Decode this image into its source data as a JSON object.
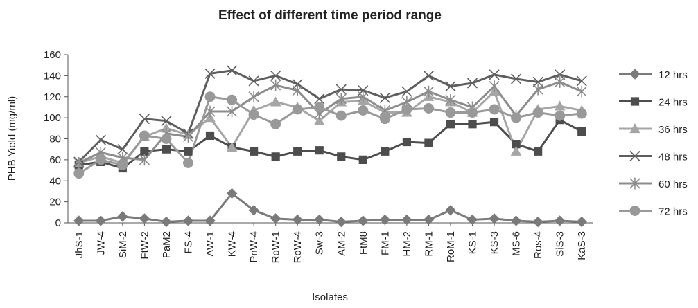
{
  "chart_data": {
    "type": "line",
    "title": "Effect of different time period range",
    "x_label": "Isolates",
    "y_label": "PHB Yield (mg/ml)",
    "categories": [
      "JhS-1",
      "JW-4",
      "SiM-2",
      "FtW-2",
      "PaM2",
      "FS-4",
      "AW-1",
      "KW-4",
      "PnW-4",
      "RoW-1",
      "RoW-4",
      "Sw-3",
      "AM-2",
      "FtM8",
      "FM-1",
      "HM-2",
      "RM-1",
      "RoM-1",
      "KS-1",
      "KS-3",
      "MS-6",
      "Ros-4",
      "SiS-3",
      "KaS-3"
    ],
    "ylim": [
      0,
      160
    ],
    "yticks": [
      0,
      20,
      40,
      60,
      80,
      100,
      120,
      140,
      160
    ],
    "grid": false,
    "legend": "right",
    "series": [
      {
        "name": "12 hrs",
        "color": "#7a7a7a",
        "marker": "diamond",
        "values": [
          2,
          2,
          6,
          4,
          1,
          2,
          2,
          28,
          12,
          4,
          3,
          3,
          1,
          2,
          3,
          3,
          3,
          12,
          3,
          4,
          2,
          1,
          2,
          1
        ]
      },
      {
        "name": "24 hrs",
        "color": "#4d4d4d",
        "marker": "square",
        "values": [
          55,
          58,
          52,
          68,
          70,
          68,
          83,
          72,
          68,
          63,
          68,
          69,
          63,
          60,
          68,
          77,
          76,
          94,
          94,
          96,
          75,
          68,
          98,
          87
        ]
      },
      {
        "name": "36 hrs",
        "color": "#a6a6a6",
        "marker": "triangle",
        "values": [
          57,
          63,
          57,
          82,
          90,
          84,
          100,
          72,
          107,
          115,
          110,
          97,
          115,
          116,
          105,
          105,
          120,
          115,
          105,
          125,
          68,
          108,
          111,
          107
        ]
      },
      {
        "name": "48 hrs",
        "color": "#5e5e5e",
        "marker": "x",
        "values": [
          58,
          79,
          70,
          99,
          97,
          85,
          142,
          145,
          135,
          140,
          132,
          118,
          127,
          126,
          119,
          125,
          140,
          130,
          133,
          141,
          137,
          134,
          141,
          135
        ]
      },
      {
        "name": "60 hrs",
        "color": "#8c8c8c",
        "marker": "asterisk",
        "values": [
          57,
          67,
          62,
          60,
          85,
          82,
          106,
          106,
          120,
          131,
          126,
          104,
          118,
          120,
          107,
          115,
          125,
          117,
          110,
          130,
          102,
          127,
          134,
          125
        ]
      },
      {
        "name": "72 hrs",
        "color": "#999999",
        "marker": "circle",
        "values": [
          47,
          60,
          55,
          83,
          80,
          57,
          120,
          117,
          103,
          94,
          108,
          110,
          102,
          107,
          99,
          108,
          109,
          105,
          105,
          108,
          100,
          105,
          102,
          104
        ]
      }
    ]
  }
}
